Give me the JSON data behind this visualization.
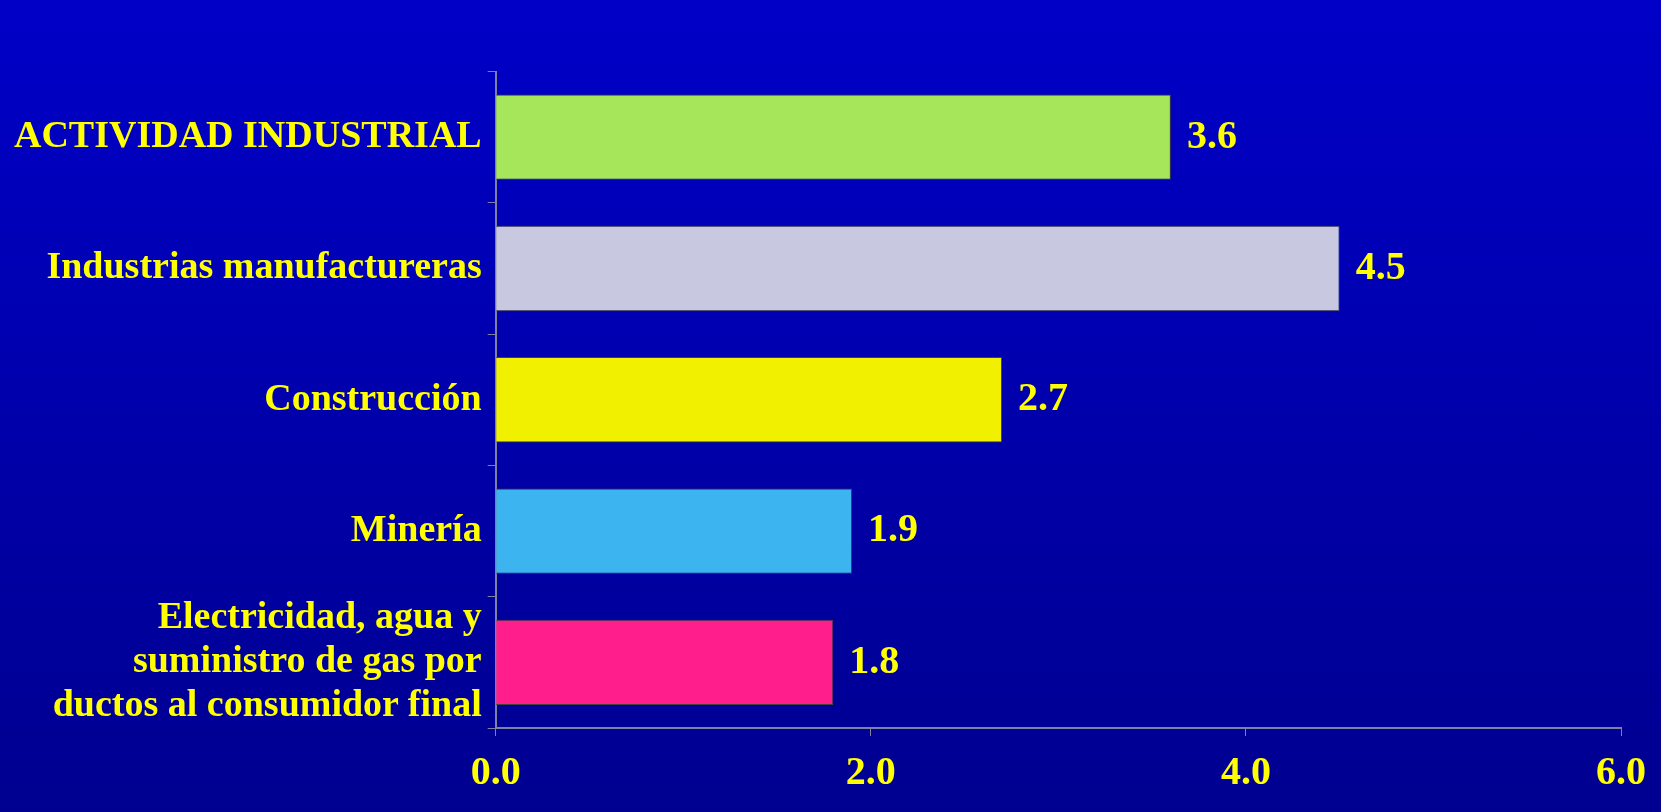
{
  "chart_data": {
    "type": "bar",
    "orientation": "horizontal",
    "categories": [
      "ACTIVIDAD INDUSTRIAL",
      "Industrias manufactureras",
      "Construcción",
      "Minería",
      "Electricidad, agua y suministro de gas por ductos al consumidor final"
    ],
    "values": [
      3.6,
      4.5,
      2.7,
      1.9,
      1.8
    ],
    "colors": [
      "#a6e65a",
      "#c8c8e0",
      "#f0f000",
      "#3cb4f0",
      "#ff1e8c"
    ],
    "xlim": [
      0,
      6
    ],
    "xticks": [
      {
        "value": 0,
        "label": "0.0"
      },
      {
        "value": 2,
        "label": "2.0"
      },
      {
        "value": 4,
        "label": "4.0"
      },
      {
        "value": 6,
        "label": "6.0"
      }
    ],
    "data_labels": true,
    "grid": false,
    "legend": false
  }
}
